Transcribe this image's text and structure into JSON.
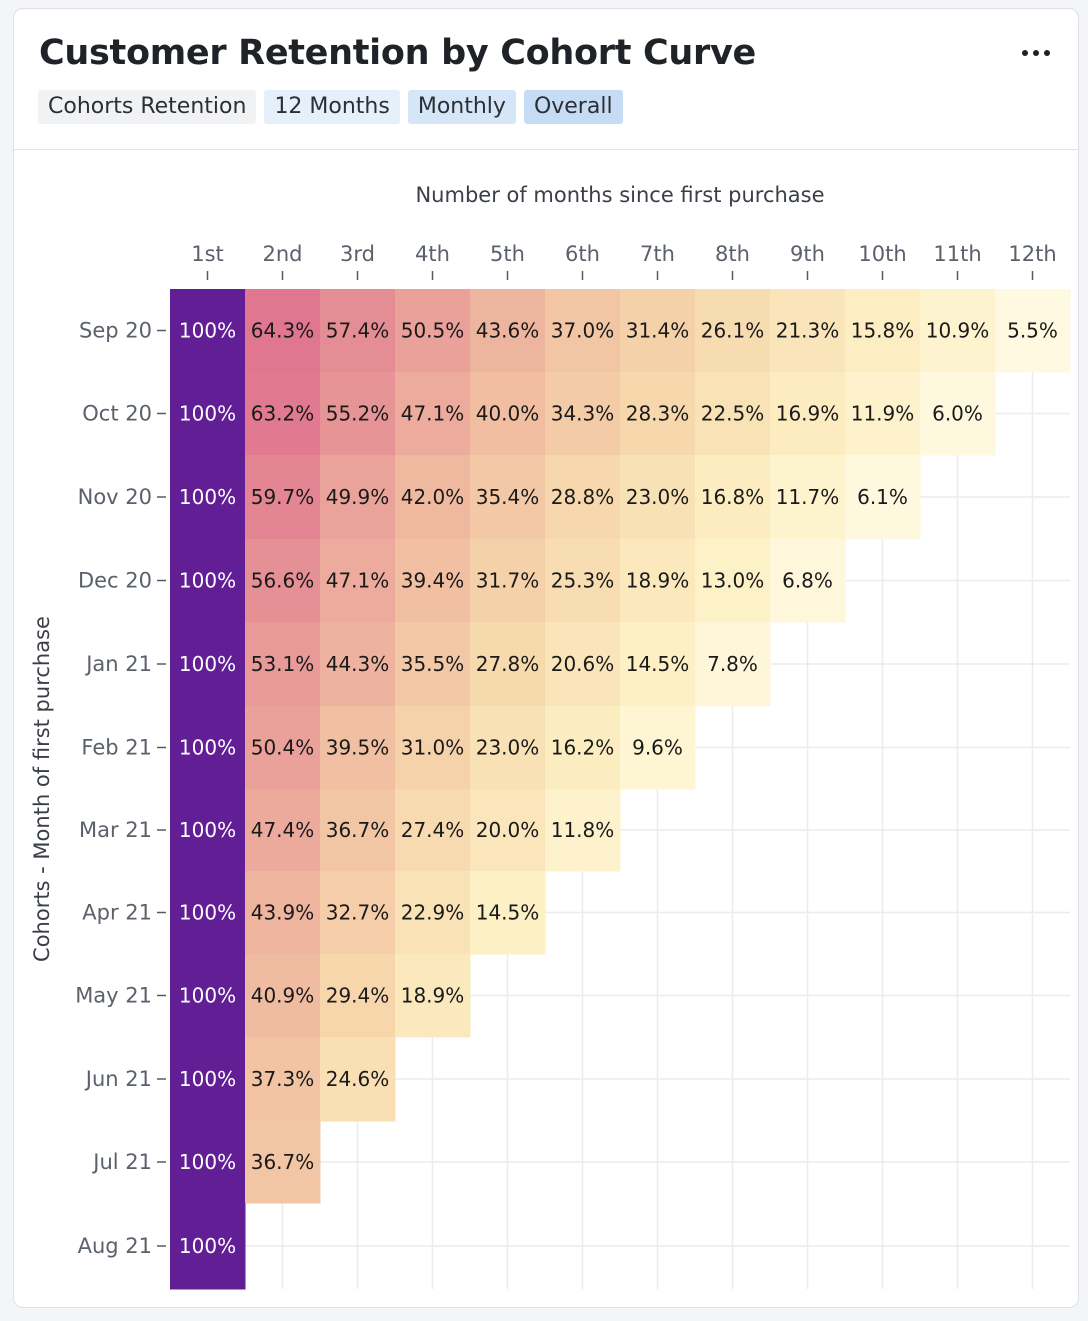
{
  "header": {
    "title": "Customer Retention by Cohort Curve",
    "menu_icon": "more-horizontal-icon",
    "tags": [
      "Cohorts Retention",
      "12 Months",
      "Monthly",
      "Overall"
    ]
  },
  "chart_data": {
    "type": "heatmap",
    "xlabel": "Number of months since first purchase",
    "ylabel": "Cohorts - Month of first purchase",
    "x": [
      "1st",
      "2nd",
      "3rd",
      "4th",
      "5th",
      "6th",
      "7th",
      "8th",
      "9th",
      "10th",
      "11th",
      "12th"
    ],
    "y": [
      "Sep 20",
      "Oct 20",
      "Nov 20",
      "Dec 20",
      "Jan 21",
      "Feb 21",
      "Mar 21",
      "Apr 21",
      "May 21",
      "Jun 21",
      "Jul 21",
      "Aug 21"
    ],
    "values": [
      [
        100,
        64.3,
        57.4,
        50.5,
        43.6,
        37.0,
        31.4,
        26.1,
        21.3,
        15.8,
        10.9,
        5.5
      ],
      [
        100,
        63.2,
        55.2,
        47.1,
        40.0,
        34.3,
        28.3,
        22.5,
        16.9,
        11.9,
        6.0
      ],
      [
        100,
        59.7,
        49.9,
        42.0,
        35.4,
        28.8,
        23.0,
        16.8,
        11.7,
        6.1
      ],
      [
        100,
        56.6,
        47.1,
        39.4,
        31.7,
        25.3,
        18.9,
        13.0,
        6.8
      ],
      [
        100,
        53.1,
        44.3,
        35.5,
        27.8,
        20.6,
        14.5,
        7.8
      ],
      [
        100,
        50.4,
        39.5,
        31.0,
        23.0,
        16.2,
        9.6
      ],
      [
        100,
        47.4,
        36.7,
        27.4,
        20.0,
        11.8
      ],
      [
        100,
        43.9,
        32.7,
        22.9,
        14.5
      ],
      [
        100,
        40.9,
        29.4,
        18.9
      ],
      [
        100,
        37.3,
        24.6
      ],
      [
        100,
        36.7
      ],
      [
        100
      ]
    ],
    "labels": [
      [
        "100%",
        "64.3%",
        "57.4%",
        "50.5%",
        "43.6%",
        "37.0%",
        "31.4%",
        "26.1%",
        "21.3%",
        "15.8%",
        "10.9%",
        "5.5%"
      ],
      [
        "100%",
        "63.2%",
        "55.2%",
        "47.1%",
        "40.0%",
        "34.3%",
        "28.3%",
        "22.5%",
        "16.9%",
        "11.9%",
        "6.0%"
      ],
      [
        "100%",
        "59.7%",
        "49.9%",
        "42.0%",
        "35.4%",
        "28.8%",
        "23.0%",
        "16.8%",
        "11.7%",
        "6.1%"
      ],
      [
        "100%",
        "56.6%",
        "47.1%",
        "39.4%",
        "31.7%",
        "25.3%",
        "18.9%",
        "13.0%",
        "6.8%"
      ],
      [
        "100%",
        "53.1%",
        "44.3%",
        "35.5%",
        "27.8%",
        "20.6%",
        "14.5%",
        "7.8%"
      ],
      [
        "100%",
        "50.4%",
        "39.5%",
        "31.0%",
        "23.0%",
        "16.2%",
        "9.6%"
      ],
      [
        "100%",
        "47.4%",
        "36.7%",
        "27.4%",
        "20.0%",
        "11.8%"
      ],
      [
        "100%",
        "43.9%",
        "32.7%",
        "22.9%",
        "14.5%"
      ],
      [
        "100%",
        "40.9%",
        "29.4%",
        "18.9%"
      ],
      [
        "100%",
        "37.3%",
        "24.6%"
      ],
      [
        "100%",
        "36.7%"
      ],
      [
        "100%"
      ]
    ],
    "color_scale": [
      "#fffef2",
      "#fdf0c4",
      "#f7d8ad",
      "#efb79f",
      "#e58e95",
      "#db5e8a",
      "#b14b91",
      "#621f95"
    ],
    "grid": true
  }
}
